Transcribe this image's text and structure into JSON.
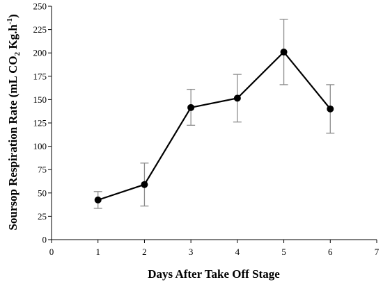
{
  "chart_data": {
    "type": "line",
    "xlabel": "Days After Take Off Stage",
    "ylabel_main": "Soursop Respiration Rate (mL CO",
    "ylabel_sub": "2",
    "ylabel_tail": " Kg.h",
    "ylabel_sup": "-1",
    "ylabel_close": ")",
    "xlim": [
      0,
      7
    ],
    "ylim": [
      0,
      250
    ],
    "x_ticks": [
      0,
      1,
      2,
      3,
      4,
      5,
      6,
      7
    ],
    "y_ticks": [
      0,
      25,
      50,
      75,
      100,
      125,
      150,
      175,
      200,
      225,
      250
    ],
    "grid": false,
    "series": [
      {
        "x": [
          1,
          2,
          3,
          4,
          5,
          6
        ],
        "values": [
          42.5,
          59,
          141.5,
          151.5,
          201,
          140
        ],
        "error_low": [
          33.5,
          36,
          122.5,
          126,
          166,
          114
        ],
        "error_high": [
          51.5,
          82,
          161,
          177,
          236,
          166
        ],
        "color": "#000000",
        "error_color": "#8c8c8c",
        "marker": "circle"
      }
    ]
  }
}
